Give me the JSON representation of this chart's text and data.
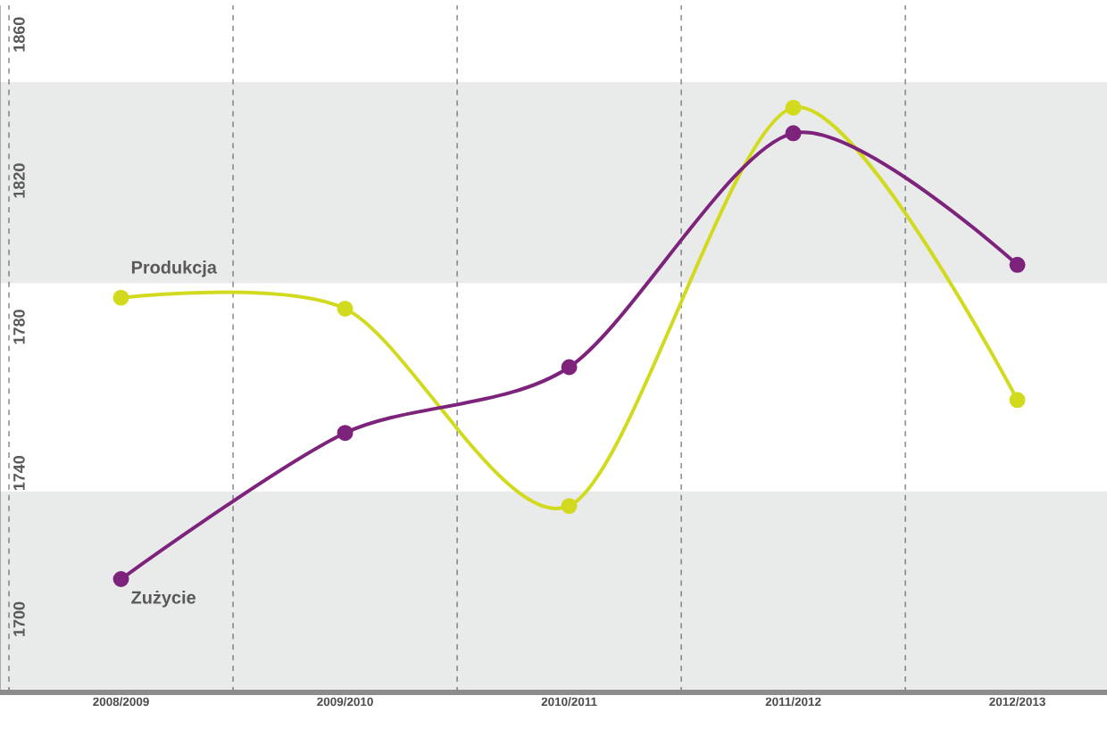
{
  "chart_data": {
    "type": "line",
    "categories": [
      "2008/2009",
      "2009/2010",
      "2010/2011",
      "2011/2012",
      "2012/2013"
    ],
    "series": [
      {
        "name": "Produkcja",
        "color": "#d2da1e",
        "values": [
          1788,
          1785,
          1731,
          1840,
          1760
        ]
      },
      {
        "name": "Zużycie",
        "color": "#7d237c",
        "values": [
          1711,
          1751,
          1769,
          1833,
          1797
        ]
      }
    ],
    "ylim": [
      1680,
      1868
    ],
    "yticks": [
      1700,
      1740,
      1780,
      1820,
      1860
    ],
    "bands": [
      {
        "axis": "y",
        "from": 1792,
        "to": 1847,
        "color": "#e9eaea"
      },
      {
        "axis": "y",
        "from": 1680,
        "to": 1735,
        "color": "#e9eaea"
      }
    ],
    "grid": "x",
    "marker": "circle",
    "line_style": "solid"
  }
}
